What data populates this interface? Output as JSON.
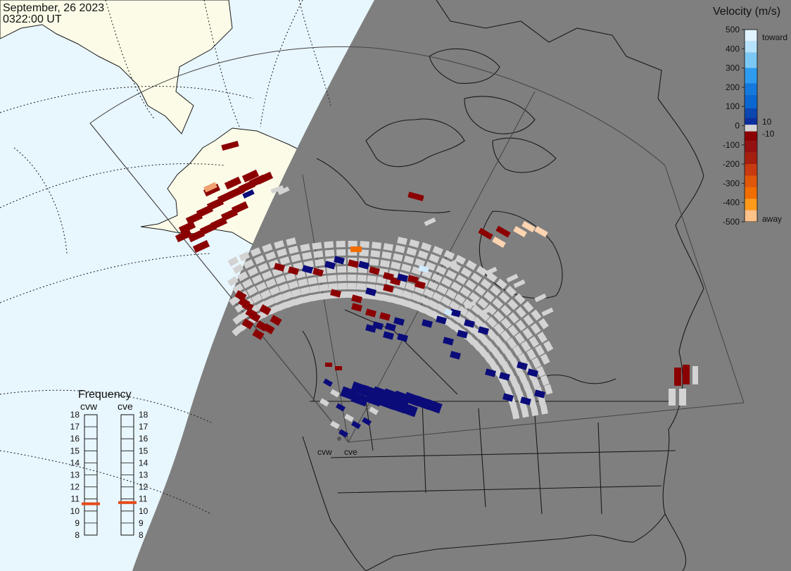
{
  "header": {
    "date": "September, 26 2023",
    "time": "0322:00 UT"
  },
  "colors": {
    "ocean_day": "#e8f6fd",
    "land_day": "#fbfbe8",
    "night": "#7f7f7f",
    "coast": "#1a1a1a",
    "grid": "#1a1a1a",
    "ground_scatter": "#d3d3d3",
    "frequency_marker": "#e64a19"
  },
  "legend": {
    "title": "Velocity (m/s)",
    "toward_label": "toward",
    "away_label": "away",
    "ticks": [
      "500",
      "400",
      "300",
      "200",
      "100",
      "0",
      "-100",
      "-200",
      "-300",
      "-400",
      "-500"
    ],
    "inner_pos": "10",
    "inner_neg": "-10",
    "scale": [
      {
        "value": 500,
        "color": "#e1f3ff"
      },
      {
        "value": 400,
        "color": "#9ad4f7"
      },
      {
        "value": 300,
        "color": "#2d9cf0"
      },
      {
        "value": 200,
        "color": "#0a66d0"
      },
      {
        "value": 100,
        "color": "#0c2f9e"
      },
      {
        "value": 10,
        "color": "#0b0c7a"
      },
      {
        "value": 0,
        "color": "#d3d3d3"
      },
      {
        "value": -10,
        "color": "#8b0000"
      },
      {
        "value": -100,
        "color": "#951010"
      },
      {
        "value": -200,
        "color": "#c83a0f"
      },
      {
        "value": -300,
        "color": "#f26d00"
      },
      {
        "value": -400,
        "color": "#ff9a1a"
      },
      {
        "value": -500,
        "color": "#ffd8b5"
      }
    ]
  },
  "frequency": {
    "title": "Frequency",
    "radars": [
      {
        "name": "cvw",
        "value_mhz": 10.6
      },
      {
        "name": "cve",
        "value_mhz": 10.7
      }
    ],
    "ticks": [
      "18",
      "17",
      "16",
      "15",
      "14",
      "13",
      "12",
      "11",
      "10",
      "9",
      "8"
    ]
  },
  "sites": [
    "cvw",
    "cve"
  ]
}
